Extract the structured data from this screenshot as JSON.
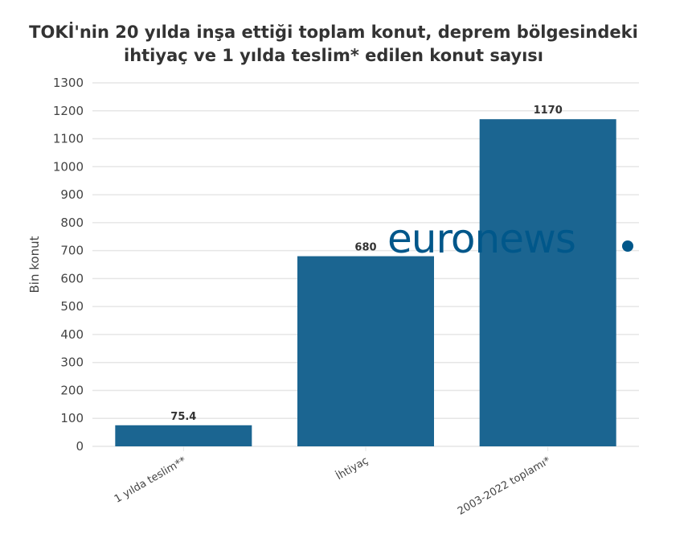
{
  "chart_data": {
    "type": "bar",
    "title_line1": "TOKİ'nin 20 yılda inşa ettiği toplam konut, deprem bölgesindeki",
    "title_line2": "ihtiyaç ve 1 yılda teslim* edilen konut sayısı",
    "categories": [
      "1 yılda teslim**",
      "İhtiyaç",
      "2003-2022 toplamı*"
    ],
    "values": [
      75.4,
      680,
      1170
    ],
    "data_labels": [
      "75.4",
      "680",
      "1170"
    ],
    "xlabel": "",
    "ylabel": "Bin konut",
    "ylim": [
      0,
      1300
    ],
    "yticks": [
      0,
      100,
      200,
      300,
      400,
      500,
      600,
      700,
      800,
      900,
      1000,
      1100,
      1200,
      1300
    ],
    "grid": true,
    "bar_color": "#1b6591"
  },
  "watermark": "euronews."
}
